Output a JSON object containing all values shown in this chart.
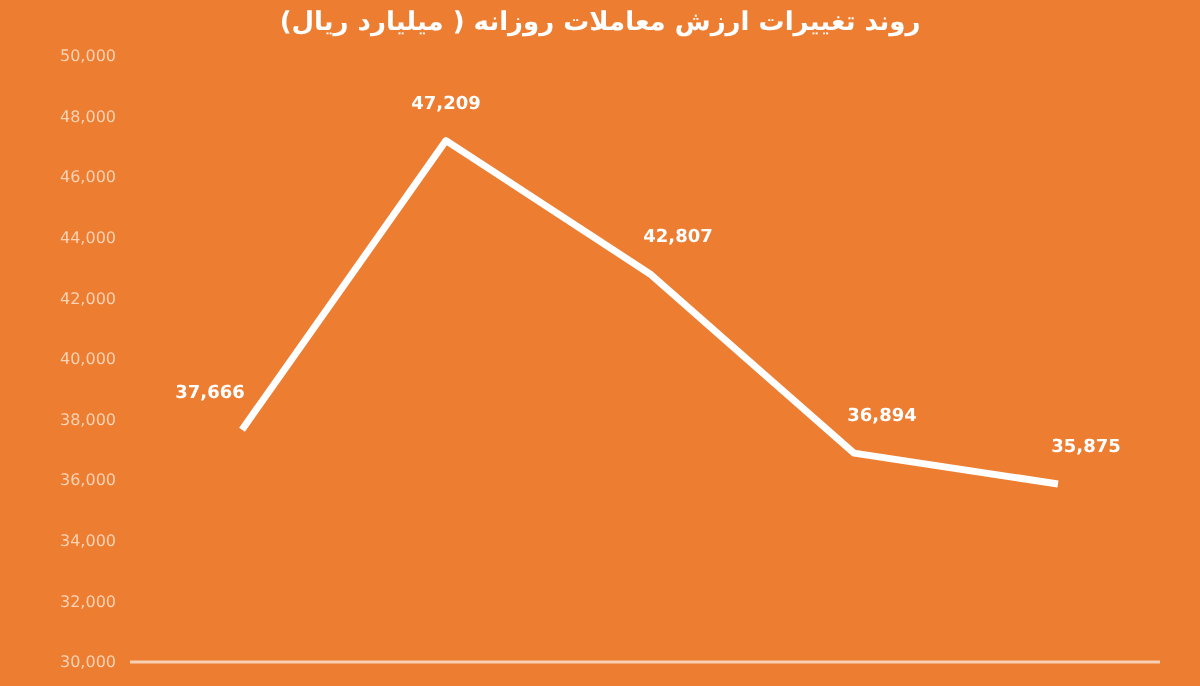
{
  "chart_data": {
    "type": "line",
    "title": "روند تغییرات ارزش معاملات روزانه ( میلیارد ریال)",
    "categories": [
      null,
      null,
      null,
      null,
      null
    ],
    "series": [
      {
        "color": "#ffffff",
        "values": [
          37666,
          47209,
          42807,
          36894,
          35875
        ],
        "value_labels": [
          "37,666",
          "47,209",
          "42,807",
          "36,894",
          "35,875"
        ]
      }
    ],
    "ylim": [
      30000,
      50000
    ],
    "yticks": [
      {
        "value": 30000,
        "label": "30,000"
      },
      {
        "value": 32000,
        "label": "32,000"
      },
      {
        "value": 34000,
        "label": "34,000"
      },
      {
        "value": 36000,
        "label": "36,000"
      },
      {
        "value": 38000,
        "label": "38,000"
      },
      {
        "value": 40000,
        "label": "40,000"
      },
      {
        "value": 42000,
        "label": "42,000"
      },
      {
        "value": 44000,
        "label": "44,000"
      },
      {
        "value": 46000,
        "label": "46,000"
      },
      {
        "value": 48000,
        "label": "48,000"
      },
      {
        "value": 50000,
        "label": "50,000"
      }
    ],
    "grid": false,
    "marker": "none",
    "line_style": "solid"
  }
}
